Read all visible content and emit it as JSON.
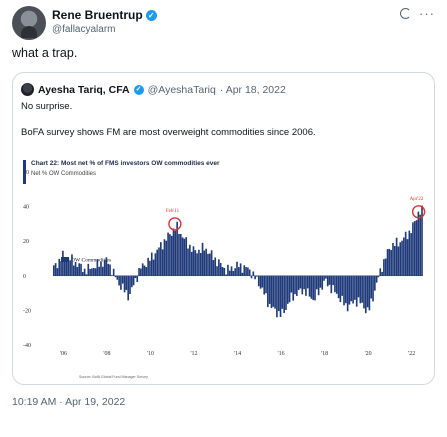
{
  "tweet": {
    "author": "Rene Bruentrup",
    "handle": "@fallacyalarm",
    "text": "what a trap.",
    "timestamp": "10:19 AM · Apr 19, 2022",
    "icons": [
      "grok-icon",
      "more-icon"
    ]
  },
  "quoted": {
    "author": "Ayesha Tariq, CFA",
    "handle": "@AyeshaTariq",
    "date": "· Apr 18, 2022",
    "line1": "No surprise.",
    "line2": "BoFA survey shows FM are most overweight commodities since 2006."
  },
  "chart_data": {
    "type": "bar",
    "title": "Chart 22: Most net % of FMS investors OW commodities ever",
    "subtitle": "Net % OW Commodities",
    "legend": "OW Commodities",
    "legend_position": "top-left",
    "ylim": [
      -40,
      60
    ],
    "yticks": [
      "60",
      "40",
      "20",
      "0",
      "-20",
      "-40"
    ],
    "xticks": [
      "'06",
      "'08",
      "'10",
      "'12",
      "'14",
      "'16",
      "'18",
      "'20",
      "'22"
    ],
    "x_range": [
      2005.5,
      2022.5
    ],
    "annotations": [
      {
        "label": "Feb'11",
        "x": 2011.1,
        "y": 30
      },
      {
        "label": "Apr'22",
        "x": 2022.3,
        "y": 37
      }
    ],
    "source": "Source: BofA Global Fund Manager Survey",
    "colors": {
      "bars": "#1f3a7a",
      "highlight": "#e03131"
    },
    "keypoints": [
      [
        2005.5,
        4
      ],
      [
        2006.0,
        12
      ],
      [
        2006.5,
        8
      ],
      [
        2007.0,
        3
      ],
      [
        2007.5,
        6
      ],
      [
        2008.0,
        9
      ],
      [
        2008.5,
        -4
      ],
      [
        2009.0,
        -12
      ],
      [
        2009.5,
        4
      ],
      [
        2010.0,
        10
      ],
      [
        2010.5,
        18
      ],
      [
        2011.0,
        26
      ],
      [
        2011.2,
        28
      ],
      [
        2011.6,
        20
      ],
      [
        2012.0,
        14
      ],
      [
        2012.5,
        16
      ],
      [
        2013.0,
        9
      ],
      [
        2013.5,
        3
      ],
      [
        2014.0,
        6
      ],
      [
        2014.5,
        4
      ],
      [
        2015.0,
        -5
      ],
      [
        2015.5,
        -18
      ],
      [
        2016.0,
        -23
      ],
      [
        2016.5,
        -12
      ],
      [
        2017.0,
        -8
      ],
      [
        2017.5,
        -14
      ],
      [
        2018.0,
        -3
      ],
      [
        2018.5,
        -10
      ],
      [
        2019.0,
        -18
      ],
      [
        2019.5,
        -14
      ],
      [
        2020.0,
        -21
      ],
      [
        2020.3,
        -8
      ],
      [
        2020.6,
        5
      ],
      [
        2021.0,
        17
      ],
      [
        2021.5,
        20
      ],
      [
        2022.0,
        27
      ],
      [
        2022.3,
        37
      ]
    ]
  }
}
